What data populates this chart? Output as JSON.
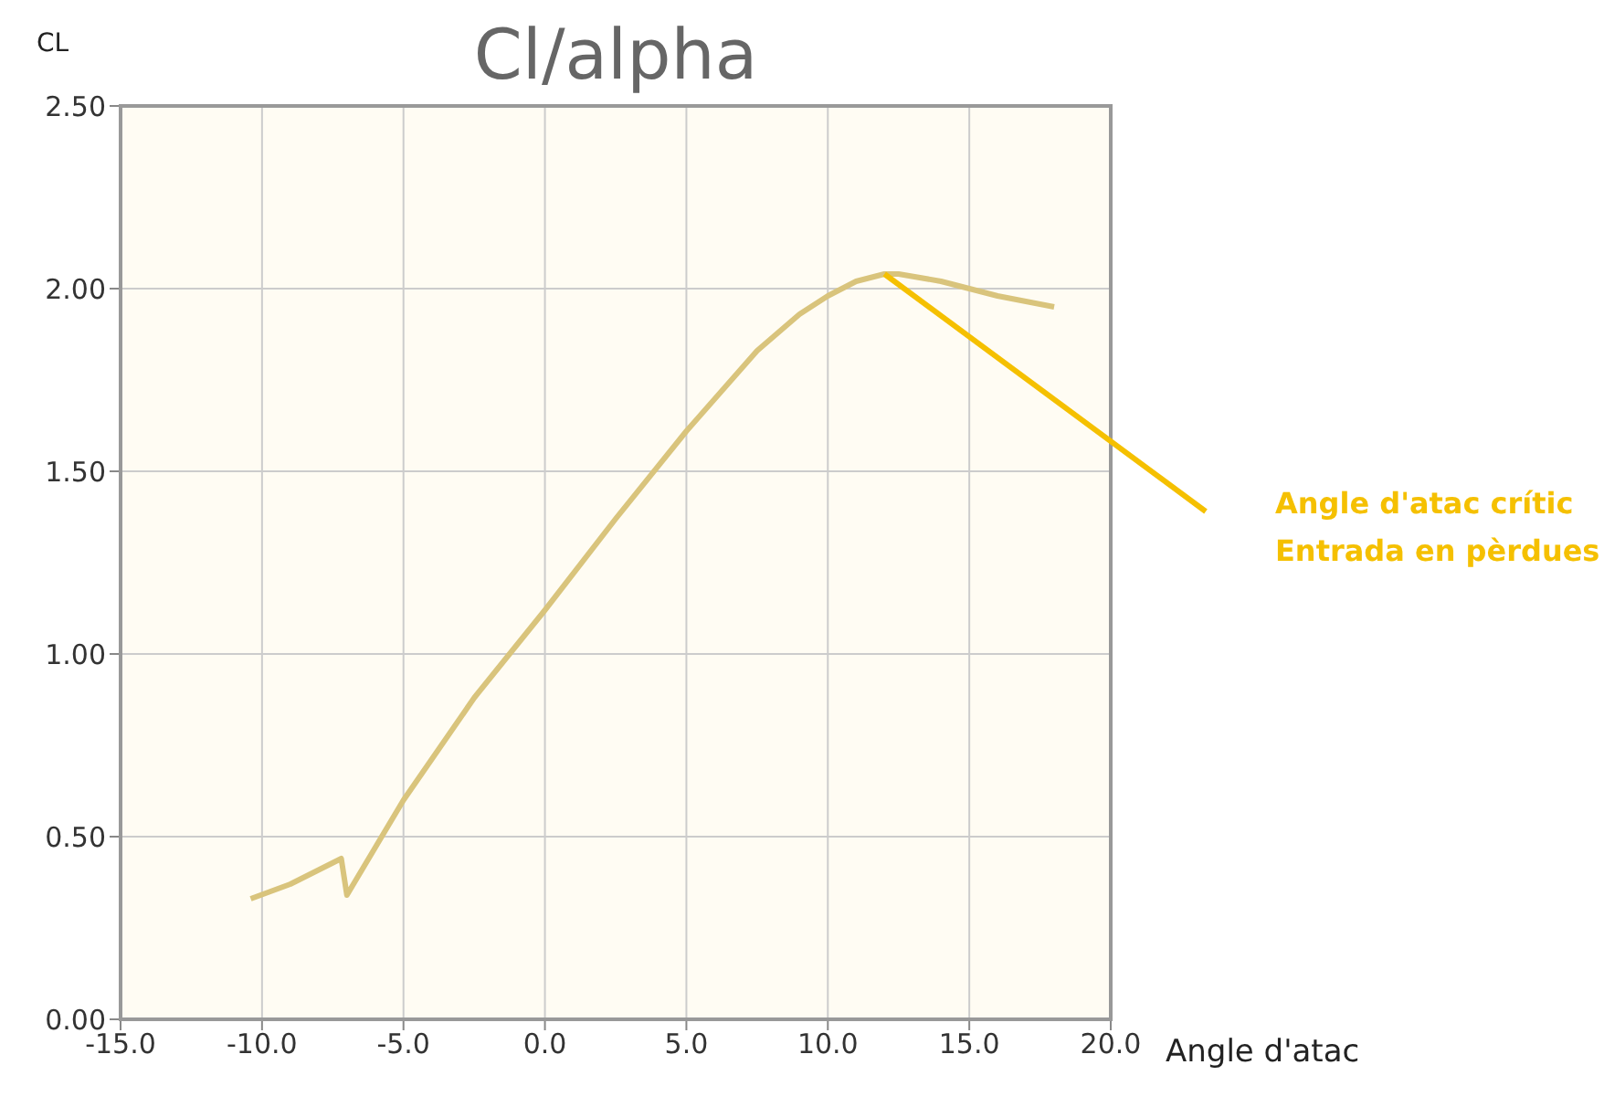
{
  "chart_data": {
    "type": "line",
    "title": "Cl/alpha",
    "xlabel": "Angle d'atac",
    "ylabel": "CL",
    "x": [
      -10.4,
      -9,
      -7.2,
      -7.0,
      -6,
      -5,
      -2.5,
      0,
      2.5,
      5,
      7.5,
      9,
      10,
      11,
      12,
      12.5,
      14,
      16,
      18
    ],
    "series": [
      {
        "color": "#d9c47c",
        "values": [
          0.33,
          0.37,
          0.44,
          0.34,
          0.47,
          0.6,
          0.88,
          1.12,
          1.37,
          1.61,
          1.83,
          1.93,
          1.98,
          2.02,
          2.04,
          2.04,
          2.02,
          1.98,
          1.95
        ]
      }
    ],
    "xlim": [
      -15,
      20
    ],
    "xticks": [
      {
        "value": -15,
        "label": "-15.0"
      },
      {
        "value": -10,
        "label": "-10.0"
      },
      {
        "value": -5,
        "label": "-5.0"
      },
      {
        "value": 0,
        "label": "0.0"
      },
      {
        "value": 5,
        "label": "5.0"
      },
      {
        "value": 10,
        "label": "10.0"
      },
      {
        "value": 15,
        "label": "15.0"
      },
      {
        "value": 20,
        "label": "20.0"
      }
    ],
    "ylim": [
      0,
      2.5
    ],
    "yticks": [
      {
        "value": 0,
        "label": "0.00"
      },
      {
        "value": 0.5,
        "label": "0.50"
      },
      {
        "value": 1,
        "label": "1.00"
      },
      {
        "value": 1.5,
        "label": "1.50"
      },
      {
        "value": 2,
        "label": "2.00"
      },
      {
        "value": 2.5,
        "label": "2.50"
      }
    ],
    "grid": true,
    "legend": false,
    "marker": "none",
    "line_style": "solid",
    "annotations": [
      "Angle d'atac crític\nEntrada en pèrdues"
    ]
  }
}
